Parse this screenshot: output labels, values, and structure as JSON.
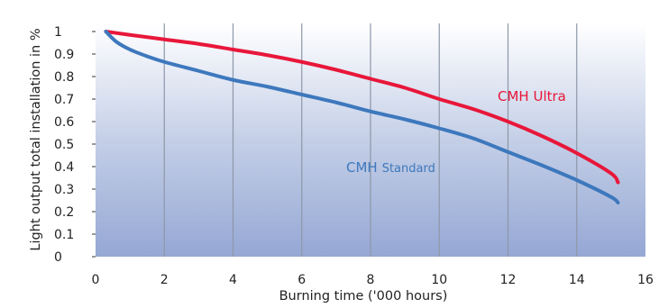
{
  "chart_data": {
    "type": "line",
    "xlabel": "Burning time ('000 hours)",
    "ylabel": "Light output total installation in %",
    "xlim": [
      0,
      16
    ],
    "ylim": [
      0,
      1.05
    ],
    "x_ticks": [
      "0",
      "2",
      "4",
      "6",
      "8",
      "10",
      "12",
      "14",
      "16"
    ],
    "y_ticks": [
      "0",
      "0.1",
      "0.2",
      "0.3",
      "0.4",
      "0.5",
      "0.6",
      "0.7",
      "0.8",
      "0.9",
      "1"
    ],
    "grid": "vertical",
    "background": "gradient from white (top) to blue (bottom)",
    "series": [
      {
        "name": "CMH Ultra",
        "color": "#e8173a",
        "points": [
          [
            0.3,
            1.0
          ],
          [
            1,
            0.985
          ],
          [
            2,
            0.965
          ],
          [
            3,
            0.945
          ],
          [
            4,
            0.92
          ],
          [
            5,
            0.895
          ],
          [
            6,
            0.865
          ],
          [
            7,
            0.83
          ],
          [
            8,
            0.79
          ],
          [
            9,
            0.75
          ],
          [
            10,
            0.7
          ],
          [
            11,
            0.655
          ],
          [
            12,
            0.6
          ],
          [
            13,
            0.535
          ],
          [
            14,
            0.46
          ],
          [
            15,
            0.37
          ],
          [
            15.2,
            0.33
          ]
        ]
      },
      {
        "name_main": "CMH",
        "name_suffix": "Standard",
        "color": "#3d78bd",
        "points": [
          [
            0.3,
            1.0
          ],
          [
            0.6,
            0.955
          ],
          [
            1,
            0.92
          ],
          [
            1.5,
            0.89
          ],
          [
            2,
            0.865
          ],
          [
            3,
            0.825
          ],
          [
            4,
            0.785
          ],
          [
            5,
            0.755
          ],
          [
            6,
            0.72
          ],
          [
            7,
            0.685
          ],
          [
            8,
            0.645
          ],
          [
            9,
            0.61
          ],
          [
            10,
            0.57
          ],
          [
            11,
            0.525
          ],
          [
            12,
            0.465
          ],
          [
            13,
            0.405
          ],
          [
            14,
            0.34
          ],
          [
            15,
            0.265
          ],
          [
            15.2,
            0.24
          ]
        ]
      }
    ]
  }
}
